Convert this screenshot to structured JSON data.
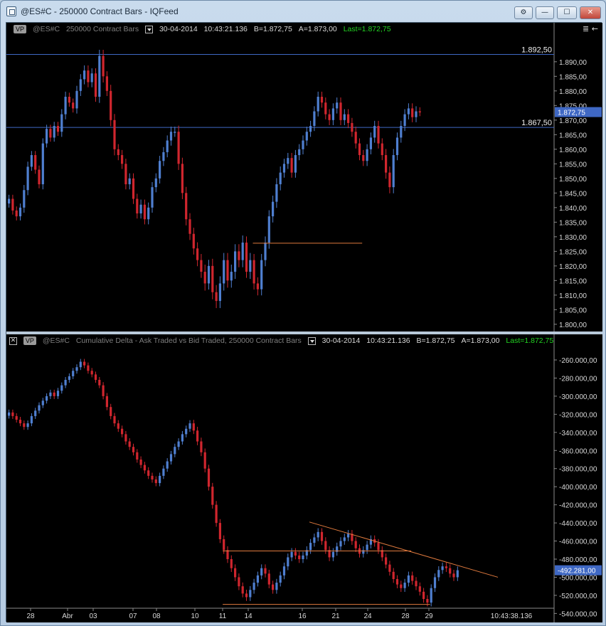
{
  "window": {
    "title": "@ES#C - 250000 Contract Bars - IQFeed",
    "buttons": [
      {
        "name": "settings-button",
        "glyph": "⚙"
      },
      {
        "name": "minimize-button",
        "glyph": "—"
      },
      {
        "name": "maximize-button",
        "glyph": "☐"
      },
      {
        "name": "close-button",
        "glyph": "✕"
      }
    ]
  },
  "price_pane": {
    "badge": "VP",
    "symbol": "@ES#C",
    "bars_label": "250000 Contract Bars",
    "date": "30-04-2014",
    "time": "10:43:21.136",
    "bid": "B=1.872,75",
    "ask": "A=1.873,00",
    "last": "Last=1.872,75",
    "corner_icon": "≣ ←"
  },
  "delta_pane": {
    "badge": "VP",
    "symbol": "@ES#C",
    "indicator_label": "Cumulative Delta - Ask Traded vs Bid Traded, 250000 Contract Bars",
    "date": "30-04-2014",
    "time": "10:43:21.136",
    "bid": "B=1.872,75",
    "ask": "A=1.873,00",
    "last": "Last=1.872,75"
  },
  "time_axis": {
    "labels": [
      "28",
      "Abr",
      "03",
      "07",
      "08",
      "10",
      "11",
      "14",
      "16",
      "21",
      "24",
      "28",
      "29"
    ],
    "cursor_time": "10:43:38.136"
  },
  "colors": {
    "up_bar": "#4f7fd0",
    "down_bar": "#d0262e",
    "hline": "#3f68c4",
    "trendline": "#e07a3e",
    "axis_text": "#d9d9d9",
    "last_marker": "#3f68c4"
  },
  "chart_data": [
    {
      "type": "candlestick",
      "title": "@ES#C 250000 Contract Bars",
      "yticks": [
        "1.890,00",
        "1.885,00",
        "1.880,00",
        "1.875,00",
        "1.870,00",
        "1.865,00",
        "1.860,00",
        "1.855,00",
        "1.850,00",
        "1.845,00",
        "1.840,00",
        "1.835,00",
        "1.830,00",
        "1.825,00",
        "1.820,00",
        "1.815,00",
        "1.810,00",
        "1.805,00",
        "1.800,00"
      ],
      "ylim": [
        1798.5,
        1898
      ],
      "y_decreasing_down": true,
      "horizontal_lines": [
        {
          "value": 1892.5,
          "label": "1.892,50"
        },
        {
          "value": 1867.5,
          "label": "1.867,50"
        }
      ],
      "segments": [
        {
          "from_bar": 65,
          "to_bar": 94,
          "value": 1827.8
        }
      ],
      "last_value_label": "1.872,75",
      "last_value": 1872.75,
      "closes": [
        1843,
        1839,
        1837,
        1840,
        1846,
        1854,
        1858,
        1853,
        1848,
        1862,
        1867,
        1864,
        1868,
        1866,
        1872,
        1878,
        1876,
        1874,
        1880,
        1884,
        1887,
        1883,
        1886,
        1878,
        1892,
        1885,
        1880,
        1870,
        1860,
        1858,
        1855,
        1848,
        1850,
        1843,
        1838,
        1841,
        1836,
        1840,
        1847,
        1850,
        1856,
        1859,
        1863,
        1866,
        1866,
        1855,
        1845,
        1836,
        1831,
        1826,
        1822,
        1818,
        1814,
        1820,
        1811,
        1808,
        1814,
        1822,
        1815,
        1818,
        1825,
        1822,
        1828,
        1818,
        1822,
        1814,
        1812,
        1822,
        1828,
        1837,
        1842,
        1848,
        1852,
        1855,
        1857,
        1852,
        1858,
        1860,
        1863,
        1866,
        1868,
        1873,
        1878,
        1876,
        1872,
        1870,
        1874,
        1876,
        1870,
        1872,
        1869,
        1866,
        1862,
        1858,
        1856,
        1860,
        1864,
        1868,
        1862,
        1858,
        1852,
        1847,
        1858,
        1864,
        1868,
        1872,
        1874,
        1871,
        1873,
        1872.75
      ],
      "ranges": [
        4,
        4,
        4,
        4,
        5,
        5,
        4,
        4,
        4,
        5,
        4,
        4,
        4,
        4,
        5,
        5,
        4,
        4,
        5,
        5,
        5,
        5,
        5,
        5,
        6,
        6,
        5,
        6,
        6,
        5,
        5,
        5,
        5,
        5,
        5,
        5,
        5,
        5,
        5,
        5,
        5,
        5,
        5,
        5,
        5,
        6,
        6,
        6,
        6,
        6,
        6,
        6,
        7,
        6,
        7,
        7,
        7,
        7,
        7,
        7,
        7,
        7,
        7,
        6,
        7,
        6,
        6,
        6,
        6,
        6,
        6,
        6,
        6,
        5,
        5,
        5,
        5,
        5,
        5,
        5,
        5,
        5,
        5,
        5,
        5,
        5,
        5,
        5,
        5,
        5,
        5,
        5,
        5,
        5,
        5,
        5,
        5,
        5,
        5,
        5,
        6,
        6,
        6,
        5,
        5,
        5,
        5,
        5,
        5,
        4
      ]
    },
    {
      "type": "candlestick",
      "title": "@ES#C Cumulative Delta - Ask Traded vs Bid Traded, 250000 Contract Bars",
      "yticks": [
        "-260.000,00",
        "-280.000,00",
        "-300.000,00",
        "-320.000,00",
        "-340.000,00",
        "-360.000,00",
        "-380.000,00",
        "-400.000,00",
        "-420.000,00",
        "-440.000,00",
        "-460.000,00",
        "-480.000,00",
        "-500.000,00",
        "-520.000,00",
        "-540.000,00"
      ],
      "ylim": [
        -546000,
        -249000
      ],
      "last_value_label": "-492.281,00",
      "last_value": -492281,
      "segments": [
        {
          "from_bar": 57,
          "to_bar": 107,
          "value": -471000
        },
        {
          "from_bar": 57,
          "to_bar": 112,
          "value": -530000
        }
      ],
      "trendline": {
        "from_bar": 80,
        "from_value": -439000,
        "to_bar": 130,
        "to_value": -500000
      },
      "closes": [
        -318000,
        -322000,
        -326000,
        -330000,
        -334000,
        -330000,
        -322000,
        -316000,
        -310000,
        -305000,
        -300000,
        -296000,
        -300000,
        -294000,
        -288000,
        -282000,
        -278000,
        -272000,
        -268000,
        -262000,
        -266000,
        -272000,
        -276000,
        -282000,
        -288000,
        -300000,
        -312000,
        -322000,
        -330000,
        -336000,
        -342000,
        -350000,
        -356000,
        -362000,
        -370000,
        -376000,
        -382000,
        -388000,
        -392000,
        -396000,
        -388000,
        -380000,
        -372000,
        -364000,
        -356000,
        -350000,
        -342000,
        -336000,
        -330000,
        -338000,
        -350000,
        -362000,
        -380000,
        -400000,
        -420000,
        -440000,
        -458000,
        -470000,
        -480000,
        -490000,
        -500000,
        -510000,
        -518000,
        -522000,
        -514000,
        -506000,
        -498000,
        -490000,
        -496000,
        -508000,
        -514000,
        -506000,
        -498000,
        -488000,
        -478000,
        -472000,
        -476000,
        -480000,
        -476000,
        -470000,
        -462000,
        -456000,
        -450000,
        -460000,
        -470000,
        -478000,
        -472000,
        -466000,
        -460000,
        -456000,
        -452000,
        -460000,
        -468000,
        -474000,
        -470000,
        -464000,
        -458000,
        -462000,
        -470000,
        -478000,
        -486000,
        -494000,
        -502000,
        -508000,
        -512000,
        -506000,
        -498000,
        -504000,
        -510000,
        -516000,
        -524000,
        -528000,
        -512000,
        -500000,
        -492000,
        -488000,
        -490000,
        -496000,
        -500000,
        -492281
      ],
      "ranges": [
        9000,
        9000,
        9000,
        9000,
        9000,
        9000,
        9000,
        9000,
        9000,
        9000,
        9000,
        9000,
        9000,
        9000,
        9000,
        9000,
        9000,
        9000,
        9000,
        9000,
        9000,
        9000,
        9000,
        9000,
        9000,
        10000,
        10000,
        10000,
        10000,
        10000,
        10000,
        10000,
        10000,
        10000,
        10000,
        10000,
        10000,
        10000,
        10000,
        10000,
        10000,
        10000,
        10000,
        10000,
        10000,
        10000,
        10000,
        10000,
        10000,
        11000,
        12000,
        12000,
        12000,
        12000,
        12000,
        12000,
        12000,
        12000,
        12000,
        12000,
        12000,
        12000,
        12000,
        12000,
        12000,
        12000,
        12000,
        12000,
        12000,
        12000,
        12000,
        12000,
        12000,
        12000,
        12000,
        12000,
        12000,
        12000,
        12000,
        12000,
        12000,
        12000,
        12000,
        12000,
        12000,
        12000,
        12000,
        12000,
        12000,
        12000,
        12000,
        12000,
        12000,
        12000,
        12000,
        12000,
        12000,
        12000,
        12000,
        12000,
        12000,
        12000,
        12000,
        12000,
        12000,
        12000,
        12000,
        12000,
        12000,
        12000,
        12000,
        12000,
        12000,
        12000,
        12000,
        12000,
        12000,
        12000,
        12000,
        12000
      ]
    }
  ]
}
